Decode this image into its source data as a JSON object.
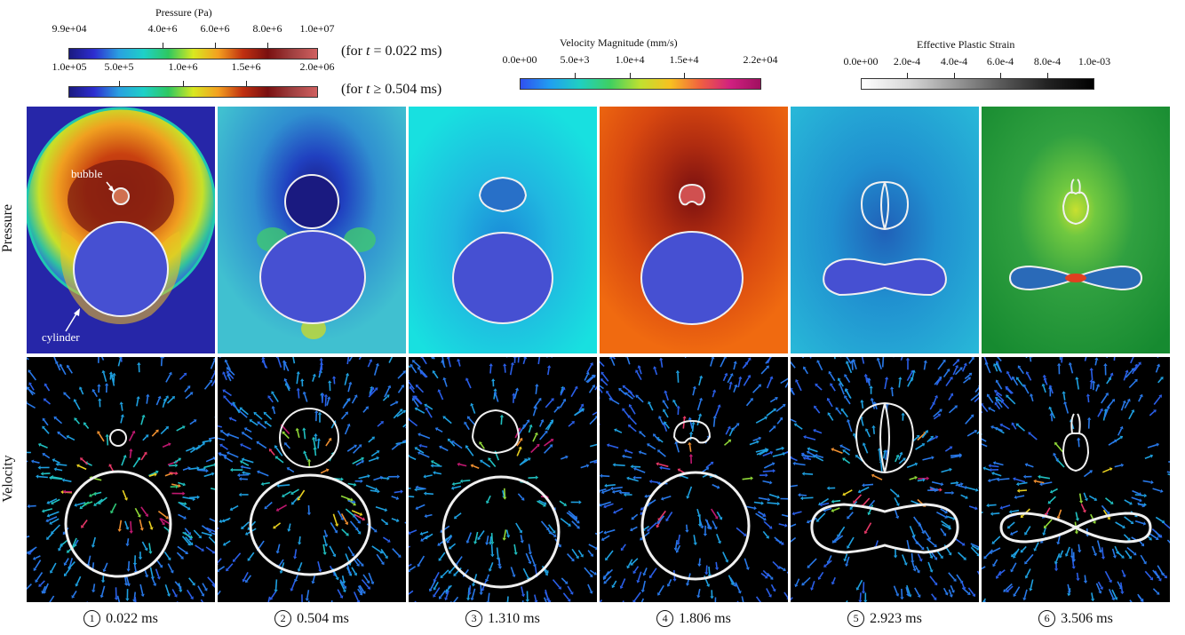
{
  "colorbars": {
    "pressure": {
      "title": "Pressure (Pa)",
      "top_ticks": [
        "9.9e+04",
        "4.0e+6",
        "6.0e+6",
        "8.0e+6",
        "1.0e+07"
      ],
      "top_note_prefix": "(for ",
      "top_note_var": "t",
      "top_note_suffix": " = 0.022 ms)",
      "bottom_ticks": [
        "1.0e+05",
        "5.0e+5",
        "1.0e+6",
        "1.5e+6",
        "2.0e+06"
      ],
      "bottom_note_prefix": "(for ",
      "bottom_note_var": "t",
      "bottom_note_suffix": " ≥ 0.504 ms)"
    },
    "velocity": {
      "title": "Velocity  Magnitude (mm/s)",
      "ticks": [
        "0.0e+00",
        "5.0e+3",
        "1.0e+4",
        "1.5e+4",
        "2.2e+04"
      ]
    },
    "strain": {
      "title": "Effective Plastic Strain",
      "ticks": [
        "0.0e+00",
        "2.0e-4",
        "4.0e-4",
        "6.0e-4",
        "8.0e-4",
        "1.0e-03"
      ]
    }
  },
  "row_labels": {
    "pressure": "Pressure",
    "velocity": "Velocity"
  },
  "annotations": {
    "bubble": "bubble",
    "cylinder": "cylinder"
  },
  "captions": [
    {
      "num": "1",
      "time": "0.022 ms"
    },
    {
      "num": "2",
      "time": "0.504 ms"
    },
    {
      "num": "3",
      "time": "1.310 ms"
    },
    {
      "num": "4",
      "time": "1.806 ms"
    },
    {
      "num": "5",
      "time": "2.923 ms"
    },
    {
      "num": "6",
      "time": "3.506 ms"
    }
  ],
  "colors": {
    "velocity_bg": "#000000",
    "outline": "#f0f0f0",
    "cylinder_fill": "#4650d2"
  }
}
